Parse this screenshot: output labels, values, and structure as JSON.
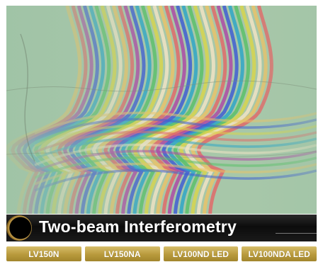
{
  "banner": {
    "title": "Two-beam Interferometry"
  },
  "models": [
    {
      "label": "LV150N"
    },
    {
      "label": "LV150NA"
    },
    {
      "label": "LV100ND LED"
    },
    {
      "label": "LV100NDA LED"
    }
  ],
  "colors": {
    "banner_bg": "#111111",
    "accent_gold": "#b89a3c",
    "title_text": "#ffffff"
  }
}
